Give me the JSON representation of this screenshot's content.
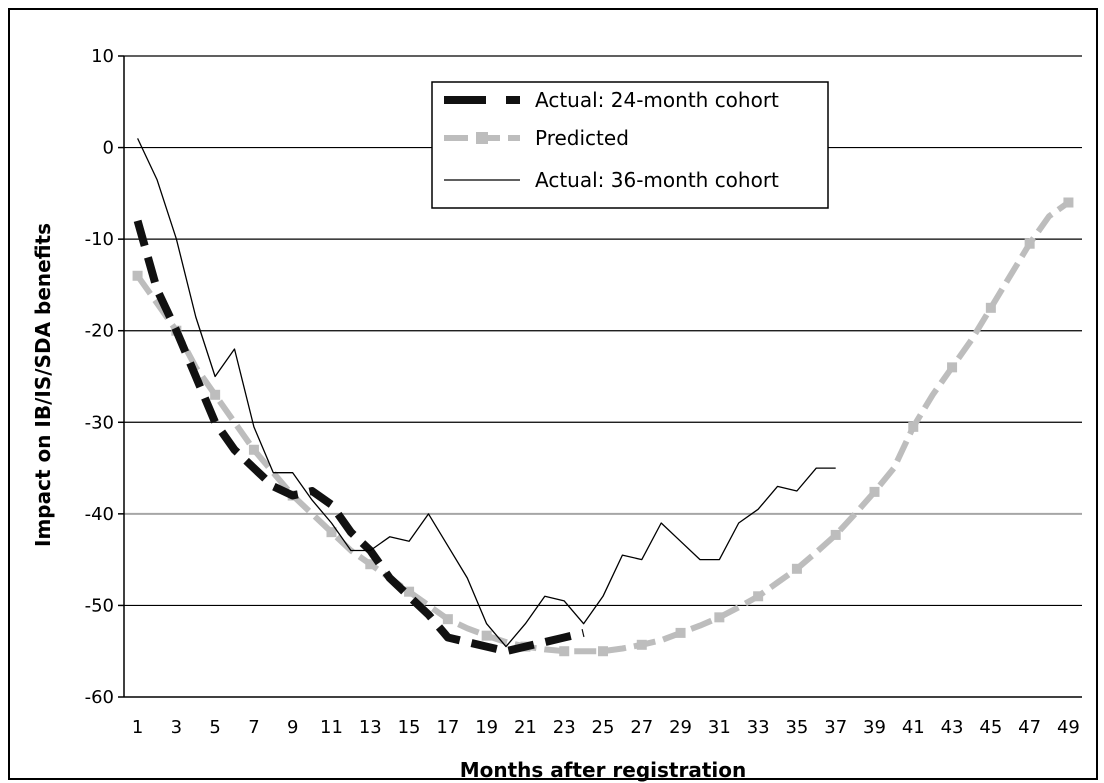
{
  "chart_data": {
    "type": "line",
    "xlabel": "Months after registration",
    "ylabel": "Impact on IB/IS/SDA benefits",
    "ylim": [
      -60,
      10
    ],
    "yticks": [
      10,
      0,
      -10,
      -20,
      -30,
      -40,
      -50,
      -60
    ],
    "xlim": [
      1,
      49
    ],
    "xticks": [
      1,
      3,
      5,
      7,
      9,
      11,
      13,
      15,
      17,
      19,
      21,
      23,
      25,
      27,
      29,
      31,
      33,
      35,
      37,
      39,
      41,
      43,
      45,
      47,
      49
    ],
    "grid": "horizontal",
    "legend_position": "top-center",
    "colors": {
      "actual_24": "#111111",
      "predicted": "#bdbdbd",
      "actual_36": "#000000",
      "grid": "#000000",
      "grid_highlight": "#a6a6a6"
    },
    "series": [
      {
        "name": "Actual: 24-month cohort",
        "style": "dashed-thick",
        "x": [
          1,
          2,
          3,
          4,
          5,
          6,
          7,
          8,
          9,
          10,
          11,
          12,
          13,
          14,
          15,
          16,
          17,
          18,
          19,
          20,
          21,
          22,
          23,
          24
        ],
        "y": [
          -8,
          -15.5,
          -20,
          -25,
          -30,
          -33,
          -35,
          -37,
          -38,
          -37.5,
          -39,
          -42,
          -44,
          -47,
          -49,
          -51,
          -53.5,
          -54,
          -54.5,
          -55,
          -54.5,
          -54,
          -53.5,
          -53
        ]
      },
      {
        "name": "Predicted",
        "style": "dashed-grey-square",
        "x": [
          1,
          2,
          3,
          4,
          5,
          6,
          7,
          8,
          9,
          10,
          11,
          12,
          13,
          14,
          15,
          16,
          17,
          18,
          19,
          20,
          21,
          22,
          23,
          24,
          25,
          26,
          27,
          28,
          29,
          30,
          31,
          32,
          33,
          34,
          35,
          36,
          37,
          38,
          39,
          40,
          41,
          42,
          43,
          44,
          45,
          46,
          47,
          48,
          49
        ],
        "y": [
          -14,
          -17,
          -20,
          -24,
          -27,
          -30,
          -33,
          -35.5,
          -38,
          -40,
          -42,
          -44,
          -45.5,
          -47,
          -48.5,
          -50,
          -51.5,
          -52.5,
          -53.3,
          -54,
          -54.5,
          -54.8,
          -55,
          -55,
          -55,
          -54.7,
          -54.3,
          -53.8,
          -53,
          -52.2,
          -51.3,
          -50.2,
          -49,
          -47.5,
          -46,
          -44.2,
          -42.3,
          -40,
          -37.6,
          -35,
          -30.5,
          -27,
          -24,
          -21,
          -17.5,
          -14,
          -10.5,
          -7.5,
          -6
        ]
      },
      {
        "name": "Actual: 36-month cohort",
        "style": "thin-solid",
        "x": [
          1,
          2,
          3,
          4,
          5,
          6,
          7,
          8,
          9,
          10,
          11,
          12,
          13,
          14,
          15,
          16,
          17,
          18,
          19,
          20,
          21,
          22,
          23,
          24,
          25,
          26,
          27,
          28,
          29,
          30,
          31,
          32,
          33,
          34,
          35,
          36,
          37
        ],
        "y": [
          1,
          -3.5,
          -10,
          -18.5,
          -25,
          -22,
          -30.5,
          -35.5,
          -35.5,
          -38.5,
          -41,
          -44,
          -44,
          -42.5,
          -43,
          -40,
          -43.5,
          -47,
          -52,
          -54.5,
          -52,
          -49,
          -49.5,
          -52,
          -49,
          -44.5,
          -45,
          -41,
          -43,
          -45,
          -45,
          -41,
          -39.5,
          -37,
          -37.5,
          -35,
          -35
        ]
      }
    ]
  }
}
